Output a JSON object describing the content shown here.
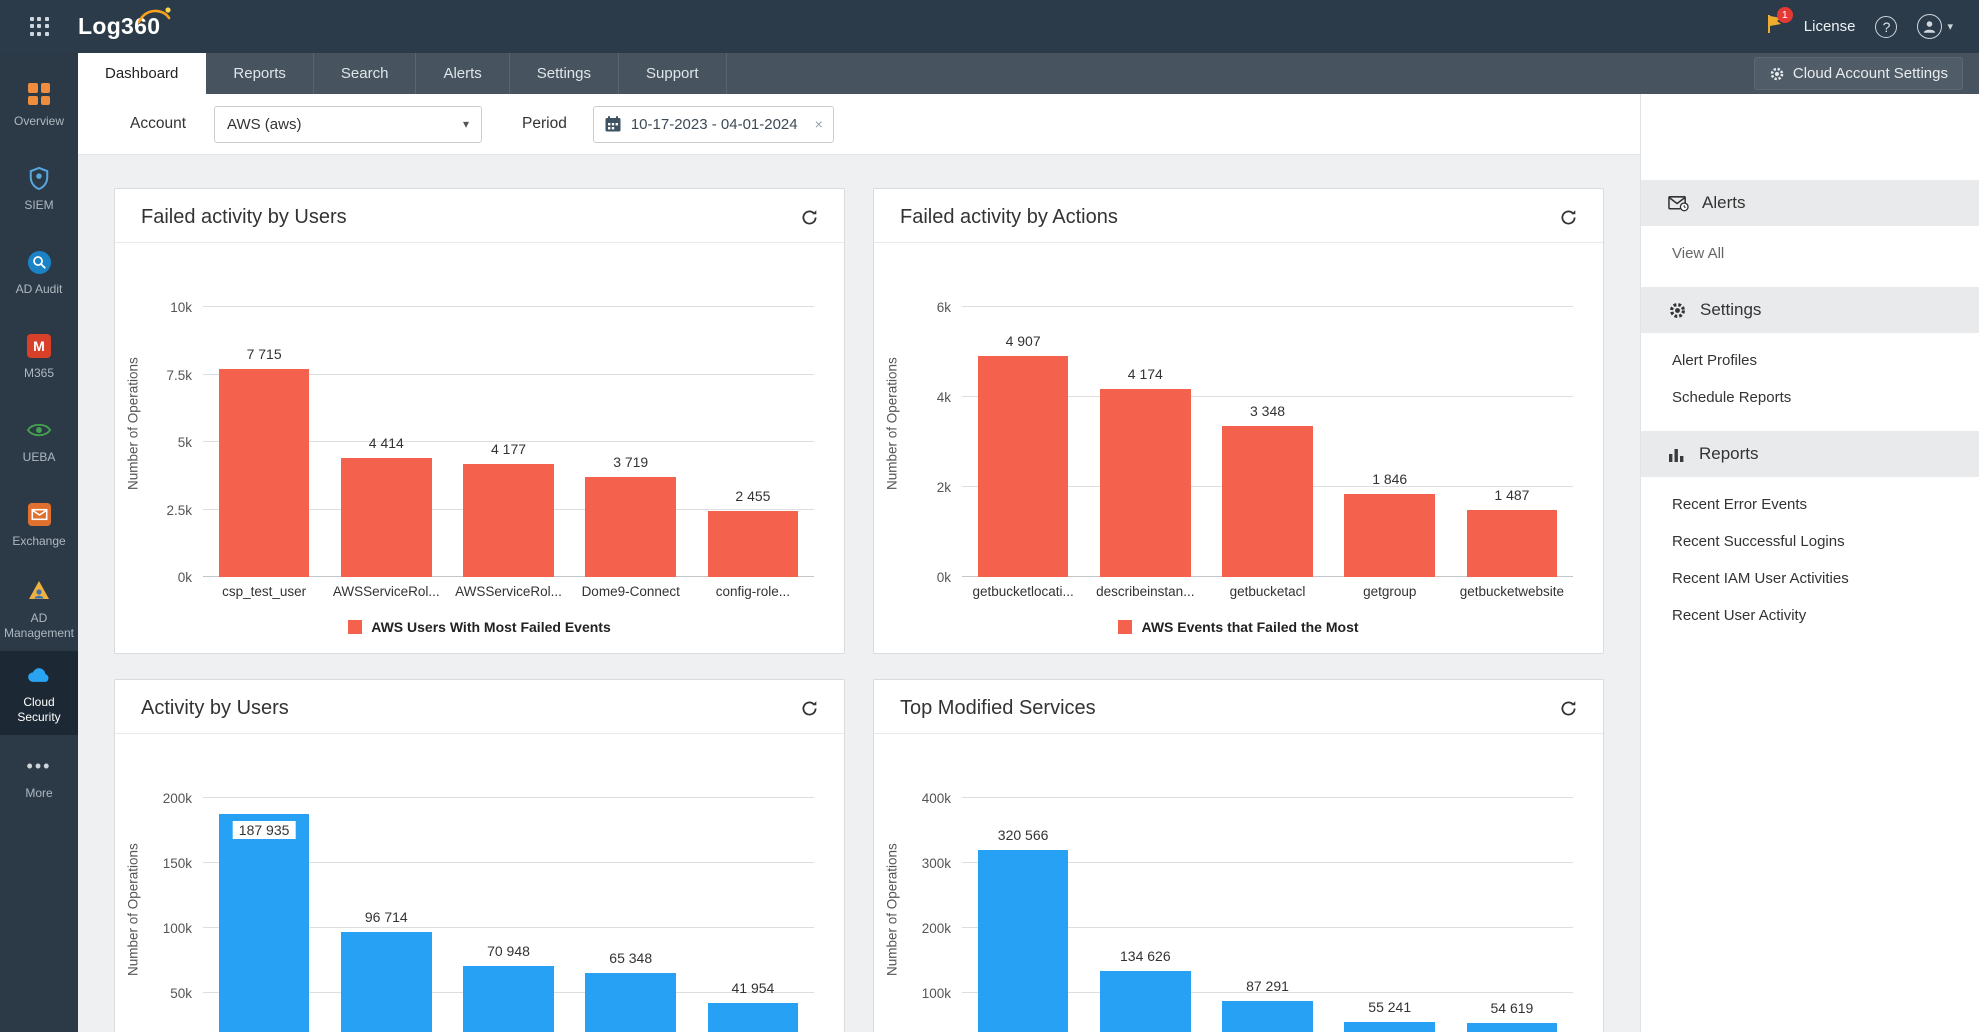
{
  "brand": {
    "logo_text": "Log360"
  },
  "topbar": {
    "license_label": "License",
    "notification_badge": "1",
    "help_label": "?"
  },
  "tabbar": {
    "tabs": [
      {
        "label": "Dashboard",
        "active": true
      },
      {
        "label": "Reports"
      },
      {
        "label": "Search"
      },
      {
        "label": "Alerts"
      },
      {
        "label": "Settings"
      },
      {
        "label": "Support"
      }
    ],
    "cloud_account_settings_label": "Cloud Account Settings"
  },
  "sidebar": {
    "items": [
      {
        "label": "Overview"
      },
      {
        "label": "SIEM"
      },
      {
        "label": "AD Audit"
      },
      {
        "label": "M365"
      },
      {
        "label": "UEBA"
      },
      {
        "label": "Exchange"
      },
      {
        "label": "AD Management"
      },
      {
        "label": "Cloud Security",
        "active": true
      },
      {
        "label": "More"
      }
    ]
  },
  "filters": {
    "account_label": "Account",
    "account_value": "AWS (aws)",
    "period_label": "Period",
    "period_value": "10-17-2023 - 04-01-2024",
    "period_clear": "×"
  },
  "right_panel": {
    "sections": [
      {
        "title": "Alerts",
        "links": [
          "View All"
        ]
      },
      {
        "title": "Settings",
        "links": [
          "Alert Profiles",
          "Schedule Reports"
        ]
      },
      {
        "title": "Reports",
        "links": [
          "Recent Error Events",
          "Recent Successful Logins",
          "Recent IAM User Activities",
          "Recent User Activity"
        ]
      }
    ]
  },
  "chart_data": [
    {
      "type": "bar",
      "title": "Failed activity by Users",
      "ylabel": "Number of Operations",
      "bar_color": "#f4614d",
      "ymax": 10000,
      "yticks": [
        {
          "value": 0,
          "label": "0k"
        },
        {
          "value": 2500,
          "label": "2.5k"
        },
        {
          "value": 5000,
          "label": "5k"
        },
        {
          "value": 7500,
          "label": "7.5k"
        },
        {
          "value": 10000,
          "label": "10k"
        }
      ],
      "categories": [
        "csp_test_user",
        "AWSServiceRol...",
        "AWSServiceRol...",
        "Dome9-Connect",
        "config-role..."
      ],
      "values": [
        7715,
        4414,
        4177,
        3719,
        2455
      ],
      "value_labels": [
        "7 715",
        "4 414",
        "4 177",
        "3 719",
        "2 455"
      ],
      "legend": "AWS Users With Most Failed Events"
    },
    {
      "type": "bar",
      "title": "Failed activity by Actions",
      "ylabel": "Number of Operations",
      "bar_color": "#f4614d",
      "ymax": 6000,
      "yticks": [
        {
          "value": 0,
          "label": "0k"
        },
        {
          "value": 2000,
          "label": "2k"
        },
        {
          "value": 4000,
          "label": "4k"
        },
        {
          "value": 6000,
          "label": "6k"
        }
      ],
      "categories": [
        "getbucketlocati...",
        "describeinstan...",
        "getbucketacl",
        "getgroup",
        "getbucketwebsite"
      ],
      "values": [
        4907,
        4174,
        3348,
        1846,
        1487
      ],
      "value_labels": [
        "4 907",
        "4 174",
        "3 348",
        "1 846",
        "1 487"
      ],
      "legend": "AWS Events that Failed the Most"
    },
    {
      "type": "bar",
      "title": "Activity by Users",
      "ylabel": "Number of Operations",
      "bar_color": "#26a1f4",
      "ymax": 200000,
      "yticks": [
        {
          "value": 50000,
          "label": "50k"
        },
        {
          "value": 100000,
          "label": "100k"
        },
        {
          "value": 150000,
          "label": "150k"
        },
        {
          "value": 200000,
          "label": "200k"
        }
      ],
      "categories": [],
      "values": [
        187935,
        96714,
        70948,
        65348,
        41954
      ],
      "value_labels": [
        "187 935",
        "96 714",
        "70 948",
        "65 348",
        "41 954"
      ]
    },
    {
      "type": "bar",
      "title": "Top Modified Services",
      "ylabel": "Number of Operations",
      "bar_color": "#26a1f4",
      "ymax": 400000,
      "yticks": [
        {
          "value": 100000,
          "label": "100k"
        },
        {
          "value": 200000,
          "label": "200k"
        },
        {
          "value": 300000,
          "label": "300k"
        },
        {
          "value": 400000,
          "label": "400k"
        }
      ],
      "categories": [],
      "values": [
        320566,
        134626,
        87291,
        55241,
        54619
      ],
      "value_labels": [
        "320 566",
        "134 626",
        "87 291",
        "55 241",
        "54 619"
      ]
    }
  ]
}
